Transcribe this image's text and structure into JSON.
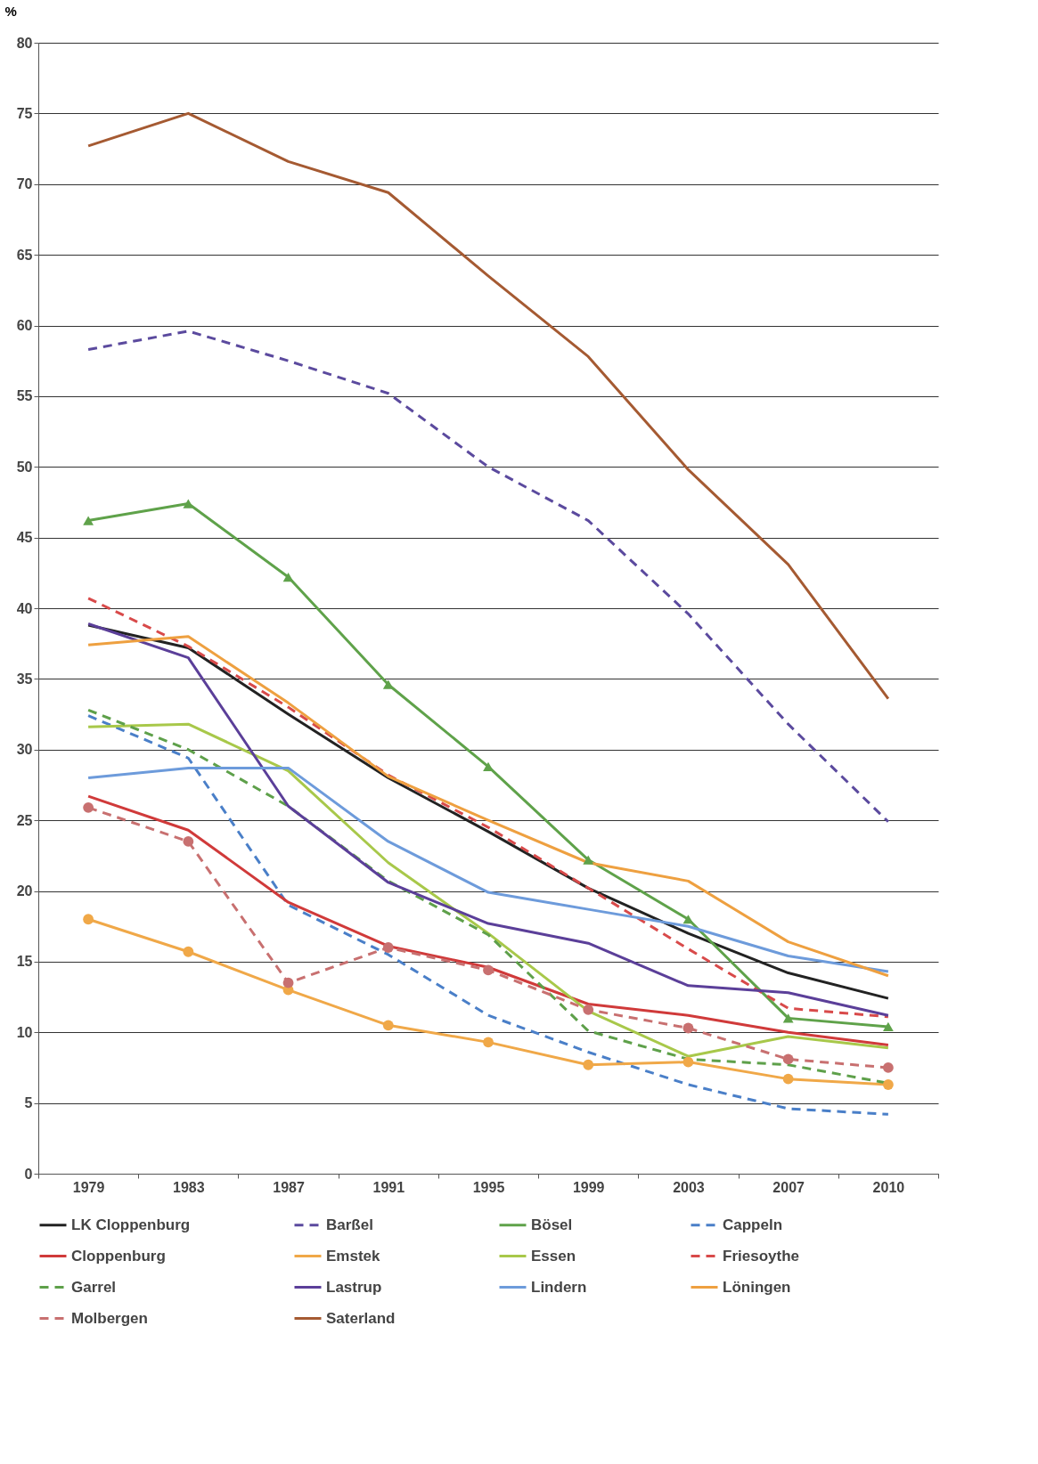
{
  "chart_data": {
    "type": "line",
    "ylabel": "%",
    "categories": [
      "1979",
      "1983",
      "1987",
      "1991",
      "1995",
      "1999",
      "2003",
      "2007",
      "2010"
    ],
    "ylim": [
      0,
      80
    ],
    "yticks": [
      0,
      5,
      10,
      15,
      20,
      25,
      30,
      35,
      40,
      45,
      50,
      55,
      60,
      65,
      70,
      75,
      80
    ],
    "grid": "y",
    "legend": "bottom",
    "series": [
      {
        "name": "LK Cloppenburg",
        "color": "#222222",
        "line_style": "solid",
        "marker": "none",
        "values": [
          38.8,
          37.2,
          32.5,
          28.0,
          24.2,
          20.2,
          17.0,
          14.2,
          12.4
        ]
      },
      {
        "name": "Barßel",
        "color": "#5b4a9e",
        "line_style": "dashed",
        "marker": "none",
        "values": [
          58.3,
          59.6,
          57.5,
          55.2,
          50.0,
          46.2,
          39.6,
          31.8,
          24.9
        ]
      },
      {
        "name": "Bösel",
        "color": "#5fa24a",
        "line_style": "solid",
        "marker": "triangle",
        "values": [
          46.2,
          47.4,
          42.2,
          34.6,
          28.8,
          22.2,
          18.0,
          11.0,
          10.4
        ]
      },
      {
        "name": "Cappeln",
        "color": "#4a7fc8",
        "line_style": "dashed",
        "marker": "none",
        "values": [
          32.4,
          29.4,
          19.0,
          15.5,
          11.2,
          8.6,
          6.3,
          4.6,
          4.2
        ]
      },
      {
        "name": "Cloppenburg",
        "color": "#d03a3a",
        "line_style": "solid",
        "marker": "none",
        "values": [
          26.7,
          24.3,
          19.2,
          16.1,
          14.6,
          12.0,
          11.2,
          10.0,
          9.1
        ]
      },
      {
        "name": "Emstek",
        "color": "#f0a848",
        "line_style": "solid",
        "marker": "circle",
        "values": [
          18.0,
          15.7,
          13.0,
          10.5,
          9.3,
          7.7,
          7.9,
          6.7,
          6.3
        ]
      },
      {
        "name": "Essen",
        "color": "#a8c84a",
        "line_style": "solid",
        "marker": "none",
        "values": [
          31.6,
          31.8,
          28.5,
          22.0,
          17.0,
          11.5,
          8.3,
          9.7,
          8.9
        ]
      },
      {
        "name": "Friesoythe",
        "color": "#d84a4a",
        "line_style": "dashed",
        "marker": "none",
        "values": [
          40.7,
          37.3,
          33.0,
          28.2,
          24.5,
          20.2,
          15.9,
          11.7,
          11.1
        ]
      },
      {
        "name": "Garrel",
        "color": "#5ea04a",
        "line_style": "dashed",
        "marker": "none",
        "values": [
          32.8,
          30.0,
          26.0,
          20.7,
          16.9,
          10.1,
          8.1,
          7.7,
          6.4
        ]
      },
      {
        "name": "Lastrup",
        "color": "#5b3f99",
        "line_style": "solid",
        "marker": "none",
        "values": [
          38.9,
          36.5,
          26.0,
          20.6,
          17.7,
          16.3,
          13.3,
          12.8,
          11.2
        ]
      },
      {
        "name": "Lindern",
        "color": "#6d9bdb",
        "line_style": "solid",
        "marker": "none",
        "values": [
          28.0,
          28.7,
          28.7,
          23.5,
          19.9,
          18.7,
          17.5,
          15.4,
          14.3
        ]
      },
      {
        "name": "Löningen",
        "color": "#eea040",
        "line_style": "solid",
        "marker": "none",
        "values": [
          37.4,
          38.0,
          33.3,
          28.1,
          25.0,
          22.0,
          20.7,
          16.4,
          14.0
        ]
      },
      {
        "name": "Molbergen",
        "color": "#c87070",
        "line_style": "dashed",
        "marker": "circle",
        "values": [
          25.9,
          23.5,
          13.5,
          16.0,
          14.4,
          11.6,
          10.3,
          8.1,
          7.5
        ]
      },
      {
        "name": "Saterland",
        "color": "#a55a32",
        "line_style": "solid",
        "marker": "none",
        "values": [
          72.7,
          75.0,
          71.6,
          69.4,
          63.5,
          57.8,
          49.8,
          43.1,
          33.6
        ]
      }
    ]
  }
}
